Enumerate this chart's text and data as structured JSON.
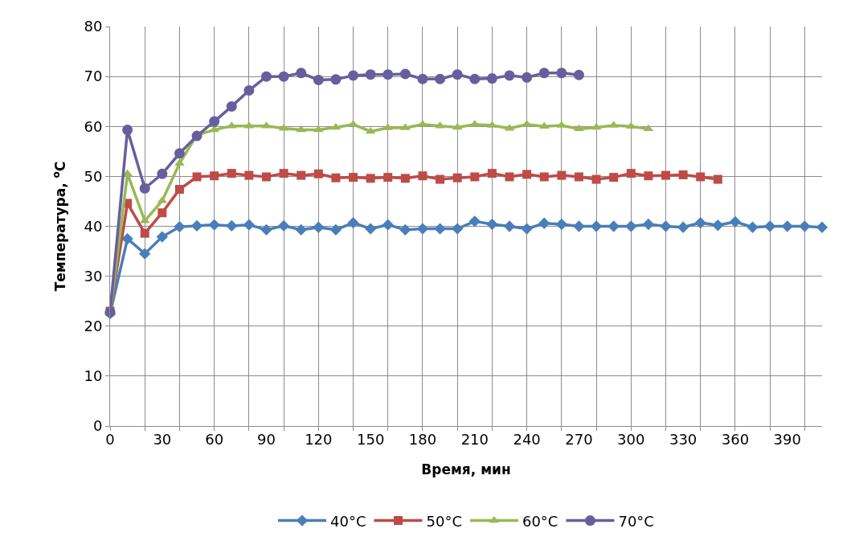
{
  "chart_data": {
    "type": "line",
    "xlabel": "Время, мин",
    "ylabel": "Температура, $^{o}$C",
    "x": [
      0,
      10,
      20,
      30,
      40,
      50,
      60,
      70,
      80,
      90,
      100,
      110,
      120,
      130,
      140,
      150,
      160,
      170,
      180,
      190,
      200,
      210,
      220,
      230,
      240,
      250,
      260,
      270,
      280,
      290,
      300,
      310,
      320,
      330,
      340,
      350,
      360,
      370,
      380,
      390,
      400,
      410
    ],
    "series": [
      {
        "name": "40°C",
        "color": "#4a7ebb",
        "marker": "diamond",
        "values": [
          22.5,
          37.5,
          34.5,
          37.9,
          39.9,
          40.1,
          40.3,
          40.1,
          40.3,
          39.3,
          40.1,
          39.3,
          39.8,
          39.3,
          40.7,
          39.5,
          40.3,
          39.3,
          39.5,
          39.5,
          39.5,
          41.0,
          40.4,
          40.0,
          39.5,
          40.6,
          40.4,
          40.0,
          40.0,
          40.0,
          40.0,
          40.4,
          40.0,
          39.8,
          40.7,
          40.2,
          40.9,
          39.8,
          40.0,
          40.0,
          40.0,
          39.8
        ]
      },
      {
        "name": "50°C",
        "color": "#be4b48",
        "marker": "square",
        "values": [
          23.0,
          44.6,
          38.6,
          42.7,
          47.4,
          49.9,
          50.1,
          50.6,
          50.2,
          49.9,
          50.6,
          50.2,
          50.5,
          49.7,
          49.8,
          49.6,
          49.8,
          49.6,
          50.1,
          49.4,
          49.7,
          49.9,
          50.6,
          49.9,
          50.4,
          49.9,
          50.2,
          49.9,
          49.4,
          49.8,
          50.6,
          50.1,
          50.2,
          50.3,
          49.9,
          49.4,
          null,
          null,
          null,
          null,
          null,
          null
        ]
      },
      {
        "name": "60°C",
        "color": "#98b954",
        "marker": "triangle",
        "values": [
          22.5,
          50.5,
          41.1,
          45.1,
          52.6,
          58.3,
          59.3,
          60.1,
          60.1,
          60.1,
          59.6,
          59.3,
          59.3,
          59.8,
          60.4,
          59.0,
          59.7,
          59.7,
          60.4,
          60.1,
          59.8,
          60.4,
          60.2,
          59.6,
          60.4,
          60.0,
          60.2,
          59.5,
          59.8,
          60.2,
          60.0,
          59.5,
          null,
          null,
          null,
          null,
          null,
          null,
          null,
          null,
          null,
          null
        ]
      },
      {
        "name": "70°C",
        "color": "#665f9e",
        "marker": "circle",
        "values": [
          22.8,
          59.3,
          47.6,
          50.5,
          54.6,
          58.1,
          61.0,
          64.0,
          67.2,
          70.0,
          70.0,
          70.7,
          69.3,
          69.4,
          70.2,
          70.4,
          70.4,
          70.5,
          69.5,
          69.5,
          70.4,
          69.5,
          69.6,
          70.2,
          69.8,
          70.7,
          70.7,
          70.3,
          null,
          null,
          null,
          null,
          null,
          null,
          null,
          null,
          null,
          null,
          null,
          null,
          null,
          null
        ]
      }
    ],
    "xlim": [
      0,
      410
    ],
    "xticks": [
      0,
      30,
      60,
      90,
      120,
      150,
      180,
      210,
      240,
      270,
      300,
      330,
      360,
      390,
      {
        "value": 0,
        "label": null
      },
      {
        "value": 20,
        "label": null
      },
      {
        "value": 40,
        "label": null
      },
      {
        "value": 60,
        "label": null
      },
      {
        "value": 80,
        "label": null
      },
      {
        "value": 100,
        "label": null
      },
      {
        "value": 120,
        "label": null
      },
      {
        "value": 140,
        "label": null
      },
      {
        "value": 160,
        "label": null
      },
      {
        "value": 180,
        "label": null
      },
      {
        "value": 200,
        "label": null
      },
      {
        "value": 220,
        "label": null
      },
      {
        "value": 240,
        "label": null
      },
      {
        "value": 260,
        "label": null
      },
      {
        "value": 280,
        "label": null
      },
      {
        "value": 300,
        "label": null
      },
      {
        "value": 320,
        "label": null
      },
      {
        "value": 340,
        "label": null
      },
      {
        "value": 360,
        "label": null
      },
      {
        "value": 380,
        "label": null
      },
      {
        "value": 400,
        "label": null
      }
    ],
    "ylim": [
      0,
      80
    ],
    "yticks": [
      0,
      10,
      20,
      30,
      40,
      50,
      60,
      70,
      80
    ],
    "grid": true,
    "legend": "bottom",
    "line_style": "solid"
  }
}
